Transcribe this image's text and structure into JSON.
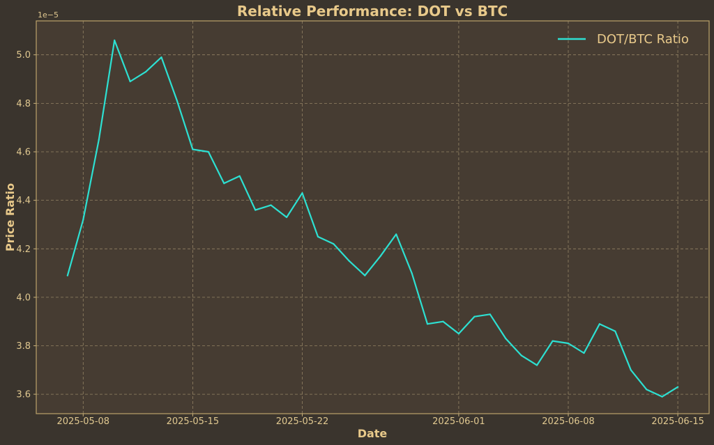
{
  "chart_data": {
    "type": "line",
    "title": "Relative Performance: DOT vs BTC",
    "xlabel": "Date",
    "ylabel": "Price Ratio",
    "y_offset_label": "1e−5",
    "grid": true,
    "legend_position": "top-right",
    "xlim": [
      "2025-05-05",
      "2025-06-17"
    ],
    "ylim": [
      3.52,
      5.14
    ],
    "x_ticks": [
      "2025-05-08",
      "2025-05-15",
      "2025-05-22",
      "2025-06-01",
      "2025-06-08",
      "2025-06-15"
    ],
    "y_ticks": [
      3.6,
      3.8,
      4.0,
      4.2,
      4.4,
      4.6,
      4.8,
      5.0
    ],
    "y_tick_labels": [
      "3.6",
      "3.8",
      "4.0",
      "4.2",
      "4.4",
      "4.6",
      "4.8",
      "5.0"
    ],
    "colors": {
      "background": "#3a342d",
      "plot_background": "#463c32",
      "spine": "#bca36a",
      "line": "#2de0d2",
      "text": "#e8c98a"
    },
    "series": [
      {
        "name": "DOT/BTC Ratio",
        "color": "#2de0d2",
        "x": [
          "2025-05-07",
          "2025-05-08",
          "2025-05-09",
          "2025-05-10",
          "2025-05-11",
          "2025-05-12",
          "2025-05-13",
          "2025-05-14",
          "2025-05-15",
          "2025-05-16",
          "2025-05-17",
          "2025-05-18",
          "2025-05-19",
          "2025-05-20",
          "2025-05-21",
          "2025-05-22",
          "2025-05-23",
          "2025-05-24",
          "2025-05-25",
          "2025-05-26",
          "2025-05-27",
          "2025-05-28",
          "2025-05-29",
          "2025-05-30",
          "2025-05-31",
          "2025-06-01",
          "2025-06-02",
          "2025-06-03",
          "2025-06-04",
          "2025-06-05",
          "2025-06-06",
          "2025-06-07",
          "2025-06-08",
          "2025-06-09",
          "2025-06-10",
          "2025-06-11",
          "2025-06-12",
          "2025-06-13",
          "2025-06-14",
          "2025-06-15"
        ],
        "values": [
          4.09,
          4.32,
          4.65,
          5.06,
          4.89,
          4.93,
          4.99,
          4.81,
          4.61,
          4.6,
          4.47,
          4.5,
          4.36,
          4.38,
          4.33,
          4.43,
          4.25,
          4.22,
          4.15,
          4.09,
          4.17,
          4.26,
          4.1,
          3.89,
          3.9,
          3.85,
          3.92,
          3.93,
          3.83,
          3.76,
          3.72,
          3.82,
          3.81,
          3.77,
          3.89,
          3.86,
          3.7,
          3.62,
          3.59,
          3.63
        ]
      }
    ]
  }
}
